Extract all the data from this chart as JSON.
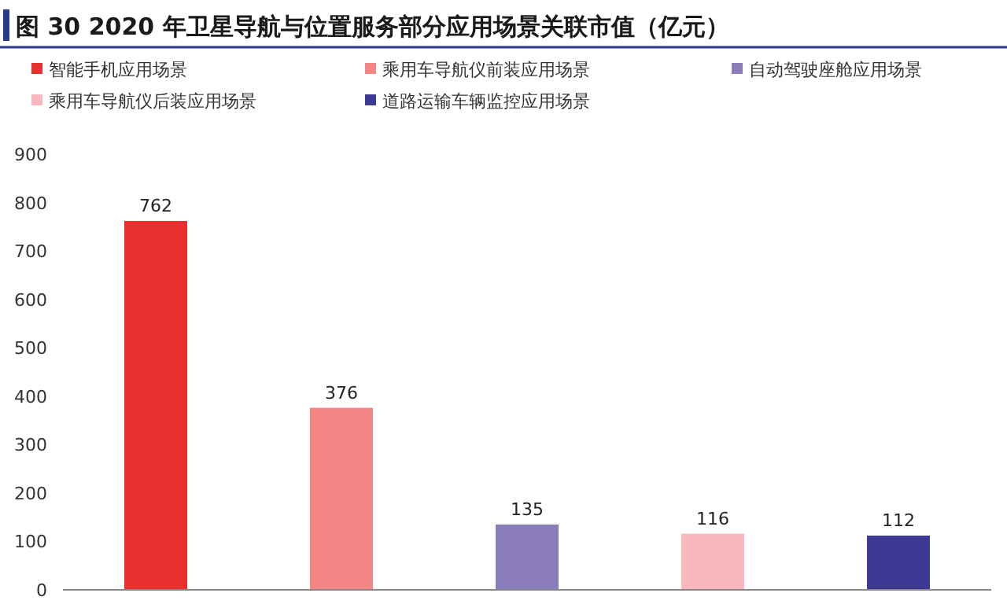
{
  "chart_data": {
    "type": "bar",
    "title": "图 30 2020 年卫星导航与位置服务部分应用场景关联市值（亿元）",
    "categories": [
      null,
      null,
      null,
      null,
      null
    ],
    "series": [
      {
        "name": "智能手机应用场景",
        "color": "#e8312f",
        "values": [
          762,
          null,
          null,
          null,
          null
        ]
      },
      {
        "name": "乘用车导航仪前装应用场景",
        "color": "#f48486",
        "values": [
          null,
          376,
          null,
          null,
          null
        ]
      },
      {
        "name": "自动驾驶座舱应用场景",
        "color": "#8b7dba",
        "values": [
          null,
          null,
          135,
          null,
          null
        ]
      },
      {
        "name": "乘用车导航仪后装应用场景",
        "color": "#f9b8be",
        "values": [
          null,
          null,
          null,
          116,
          null
        ]
      },
      {
        "name": "道路运输车辆监控应用场景",
        "color": "#3d3a94",
        "values": [
          null,
          null,
          null,
          null,
          112
        ]
      }
    ],
    "ylim": [
      0,
      900
    ],
    "yticks": [
      0,
      100,
      200,
      300,
      400,
      500,
      600,
      700,
      800,
      900
    ],
    "data_labels": true,
    "legend": "top"
  }
}
